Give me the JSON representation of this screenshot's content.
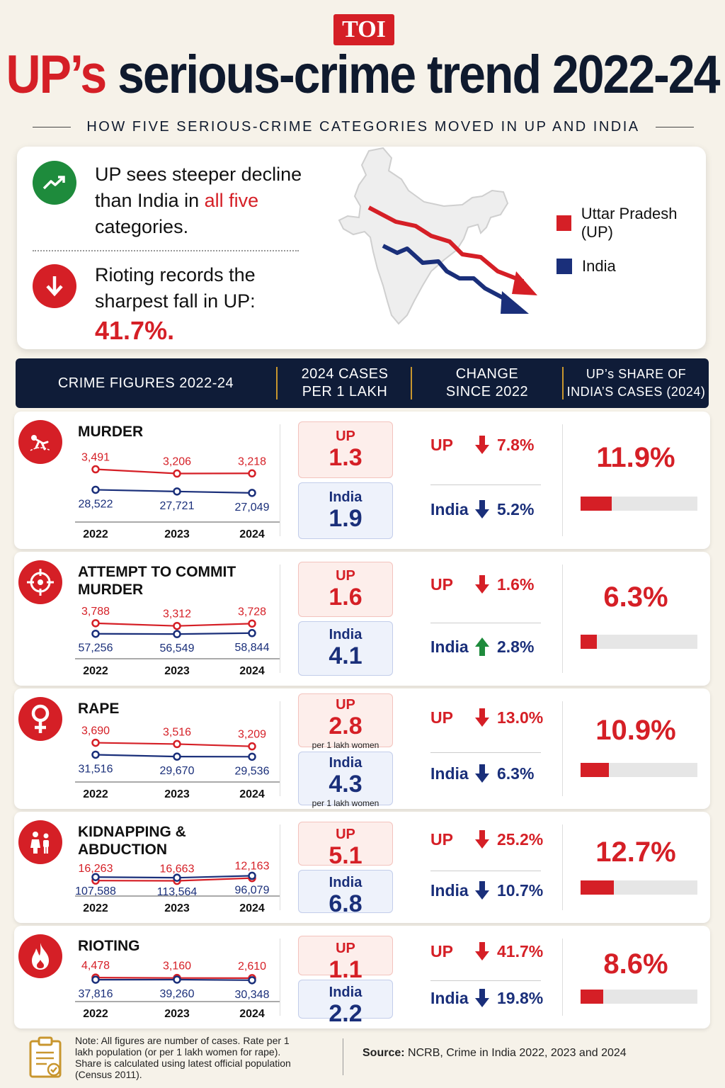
{
  "logo": "TOI",
  "headline": {
    "part1": "UP’s",
    "part2": "serious-crime trend 2022-24"
  },
  "subtitle": "HOW FIVE SERIOUS-CRIME CATEGORIES MOVED IN UP AND INDIA",
  "insights": {
    "one": {
      "pre": "UP sees steeper decline than India in ",
      "highlight": "all five",
      "post": " categories."
    },
    "two": {
      "text": "Rioting records the sharpest fall in UP:",
      "figure": "41.7%."
    }
  },
  "legend": [
    {
      "label": "Uttar Pradesh (UP)",
      "color": "#d51f26"
    },
    {
      "label": "India",
      "color": "#1a2f7a"
    }
  ],
  "table_headers": {
    "c1": "CRIME FIGURES 2022-24",
    "c2a": "2024 CASES",
    "c2b": "PER 1 LAKH",
    "c3a": "CHANGE",
    "c3b": "SINCE 2022",
    "c4a": "UP’s SHARE OF",
    "c4b": "INDIA’S CASES (2024)"
  },
  "labels": {
    "up": "UP",
    "india": "India"
  },
  "chart_data": {
    "type": "line",
    "x": [
      "2022",
      "2023",
      "2024"
    ],
    "crimes": [
      {
        "name": "MURDER",
        "up": [
          3491,
          3206,
          3218
        ],
        "india": [
          28522,
          27721,
          27049
        ],
        "up_labels": [
          "3,491",
          "3,206",
          "3,218"
        ],
        "india_labels": [
          "28,522",
          "27,721",
          "27,049"
        ],
        "rate_up": "1.3",
        "rate_india": "1.9",
        "rate_unit": "",
        "change_up": "7.8%",
        "change_up_dir": "down",
        "change_india": "5.2%",
        "change_india_dir": "down",
        "share": "11.9%",
        "share_value": 11.9,
        "icon": "crime-scene-icon"
      },
      {
        "name": "ATTEMPT TO COMMIT MURDER",
        "up": [
          3788,
          3312,
          3728
        ],
        "india": [
          57256,
          56549,
          58844
        ],
        "up_labels": [
          "3,788",
          "3,312",
          "3,728"
        ],
        "india_labels": [
          "57,256",
          "56,549",
          "58,844"
        ],
        "rate_up": "1.6",
        "rate_india": "4.1",
        "rate_unit": "",
        "change_up": "1.6%",
        "change_up_dir": "down",
        "change_india": "2.8%",
        "change_india_dir": "up",
        "share": "6.3%",
        "share_value": 6.3,
        "icon": "crosshair-icon"
      },
      {
        "name": "RAPE",
        "up": [
          3690,
          3516,
          3209
        ],
        "india": [
          31516,
          29670,
          29536
        ],
        "up_labels": [
          "3,690",
          "3,516",
          "3,209"
        ],
        "india_labels": [
          "31,516",
          "29,670",
          "29,536"
        ],
        "rate_up": "2.8",
        "rate_india": "4.3",
        "rate_unit": "per 1 lakh women",
        "change_up": "13.0%",
        "change_up_dir": "down",
        "change_india": "6.3%",
        "change_india_dir": "down",
        "share": "10.9%",
        "share_value": 10.9,
        "icon": "female-symbol-icon"
      },
      {
        "name": "KIDNAPPING & ABDUCTION",
        "up": [
          16263,
          16663,
          12163
        ],
        "india": [
          107588,
          113564,
          96079
        ],
        "up_labels": [
          "16,263",
          "16,663",
          "12,163"
        ],
        "india_labels": [
          "107,588",
          "113,564",
          "96,079"
        ],
        "rate_up": "5.1",
        "rate_india": "6.8",
        "rate_unit": "",
        "change_up": "25.2%",
        "change_up_dir": "down",
        "change_india": "10.7%",
        "change_india_dir": "down",
        "share": "12.7%",
        "share_value": 12.7,
        "icon": "children-icon"
      },
      {
        "name": "RIOTING",
        "up": [
          4478,
          3160,
          2610
        ],
        "india": [
          37816,
          39260,
          30348
        ],
        "up_labels": [
          "4,478",
          "3,160",
          "2,610"
        ],
        "india_labels": [
          "37,816",
          "39,260",
          "30,348"
        ],
        "rate_up": "1.1",
        "rate_india": "2.2",
        "rate_unit": "",
        "change_up": "41.7%",
        "change_up_dir": "down",
        "change_india": "19.8%",
        "change_india_dir": "down",
        "share": "8.6%",
        "share_value": 8.6,
        "icon": "fire-icon"
      }
    ]
  },
  "footer": {
    "note": "Note: All figures are number of cases. Rate per 1 lakh population (or per 1 lakh women for rape). Share is calculated using latest official population (Census 2011).",
    "source_label": "Source:",
    "source_text": " NCRB, Crime in India 2022, 2023 and 2024"
  }
}
